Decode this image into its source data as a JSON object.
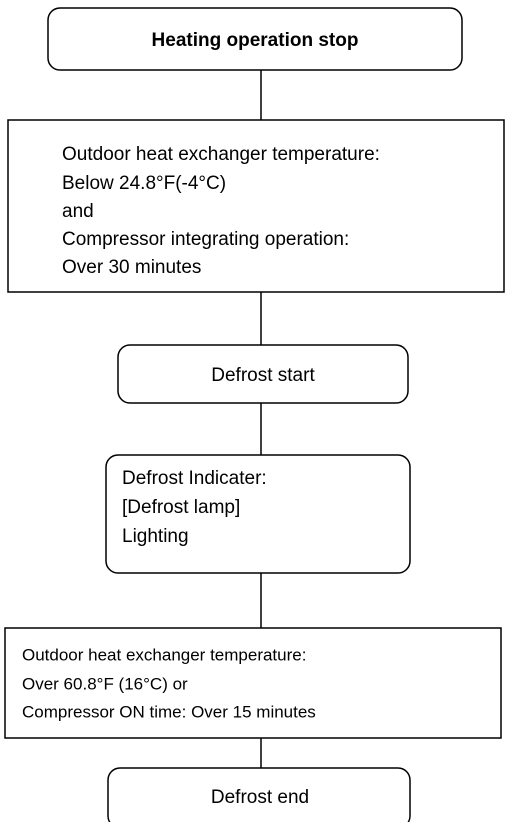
{
  "nodes": [
    {
      "lines": [
        "Heating operation stop"
      ]
    },
    {
      "lines": [
        "Outdoor heat exchanger temperature:",
        "Below 24.8°F(-4°C)",
        "and",
        "Compressor integrating operation:",
        "Over 30 minutes"
      ]
    },
    {
      "lines": [
        "Defrost start"
      ]
    },
    {
      "lines": [
        "Defrost Indicater:",
        "[Defrost lamp]",
        "Lighting"
      ]
    },
    {
      "lines": [
        "Outdoor heat exchanger temperature:",
        "Over 60.8°F (16°C) or",
        "Compressor ON time: Over 15 minutes"
      ]
    },
    {
      "lines": [
        "Defrost end"
      ]
    }
  ]
}
